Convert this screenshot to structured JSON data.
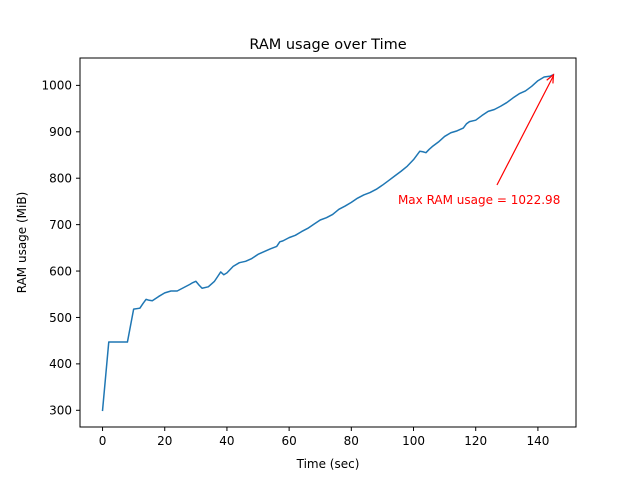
{
  "chart_data": {
    "type": "line",
    "title": "RAM usage over Time",
    "xlabel": "Time (sec)",
    "ylabel": "RAM usage (MiB)",
    "xlim": [
      -7.25,
      152.25
    ],
    "ylim": [
      264,
      1059
    ],
    "xticks": [
      0,
      20,
      40,
      60,
      80,
      100,
      120,
      140
    ],
    "yticks": [
      300,
      400,
      500,
      600,
      700,
      800,
      900,
      1000
    ],
    "grid": false,
    "line_color": "#1f77b4",
    "series": [
      {
        "x": [
          0,
          2,
          4,
          6,
          8,
          10,
          12,
          13,
          14,
          15,
          16,
          18,
          20,
          22,
          24,
          26,
          28,
          29,
          30,
          31,
          32,
          34,
          36,
          37,
          38,
          39,
          40,
          42,
          44,
          46,
          48,
          50,
          52,
          54,
          56,
          57,
          58,
          60,
          62,
          64,
          66,
          68,
          70,
          72,
          74,
          76,
          78,
          80,
          82,
          84,
          86,
          88,
          90,
          92,
          94,
          96,
          98,
          100,
          102,
          103,
          104,
          105,
          106,
          108,
          110,
          112,
          114,
          116,
          117,
          118,
          120,
          122,
          124,
          126,
          128,
          130,
          132,
          134,
          136,
          138,
          140,
          142,
          144,
          145
        ],
        "y": [
          300,
          447,
          447,
          447,
          447,
          518,
          520,
          530,
          539,
          537,
          536,
          545,
          553,
          557,
          557,
          564,
          571,
          575,
          578,
          570,
          563,
          566,
          578,
          588,
          598,
          592,
          596,
          610,
          618,
          621,
          627,
          636,
          642,
          648,
          653,
          663,
          665,
          672,
          677,
          685,
          692,
          701,
          710,
          715,
          722,
          733,
          740,
          748,
          757,
          764,
          769,
          776,
          785,
          795,
          805,
          815,
          826,
          840,
          858,
          857,
          855,
          862,
          868,
          878,
          890,
          898,
          902,
          908,
          917,
          922,
          925,
          935,
          944,
          948,
          955,
          963,
          973,
          982,
          988,
          998,
          1010,
          1018,
          1020,
          1022.98
        ]
      }
    ],
    "annotation": {
      "text": "Max RAM usage = 1022.98",
      "color": "#ff0000",
      "point": [
        145,
        1022.98
      ],
      "text_anchor_data": [
        95,
        725
      ]
    }
  }
}
